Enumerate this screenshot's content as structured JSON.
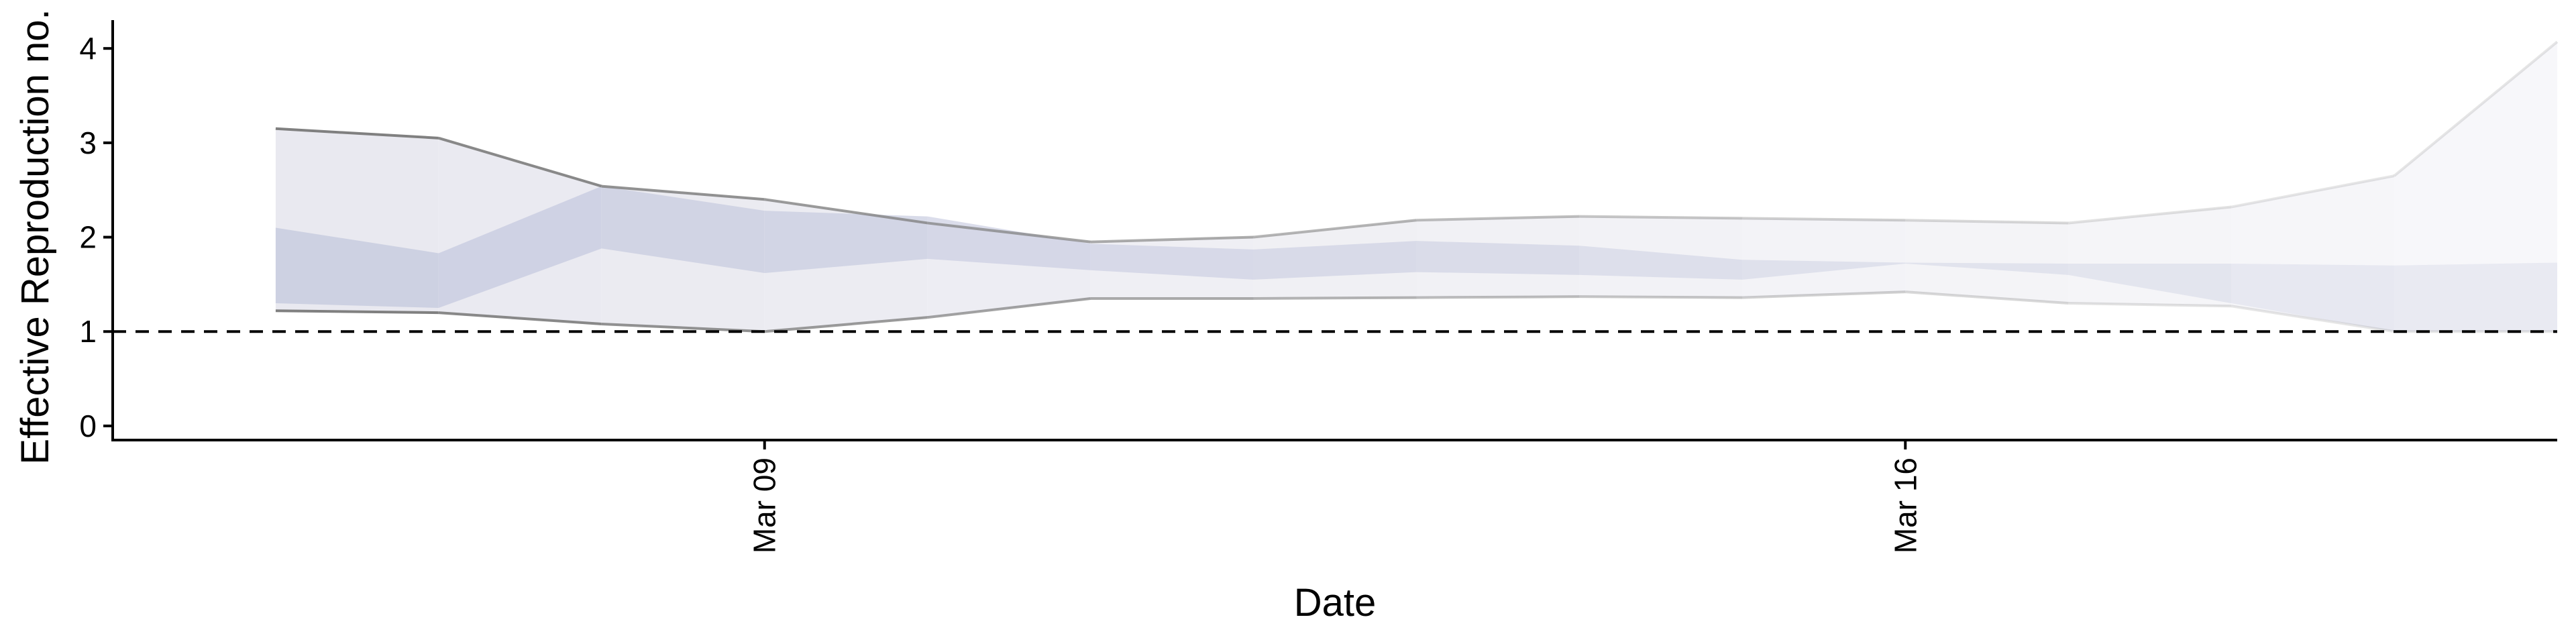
{
  "chart_data": {
    "type": "area",
    "xlabel": "Date",
    "ylabel": "Effective Reproduction no.",
    "ylim": [
      -0.15,
      4.3
    ],
    "xlim": [
      "2020-03-05",
      "2020-03-20"
    ],
    "x_ticks": [
      "2020-03-09",
      "2020-03-16"
    ],
    "x_tick_labels": [
      "Mar 09",
      "Mar 16"
    ],
    "y_ticks": [
      0,
      1,
      2,
      3,
      4
    ],
    "y_tick_labels": [
      "0",
      "1",
      "2",
      "3",
      "4"
    ],
    "reference_line": {
      "y": 1,
      "style": "dashed"
    },
    "x": [
      "2020-03-06",
      "2020-03-07",
      "2020-03-08",
      "2020-03-09",
      "2020-03-10",
      "2020-03-11",
      "2020-03-12",
      "2020-03-13",
      "2020-03-14",
      "2020-03-15",
      "2020-03-16",
      "2020-03-17",
      "2020-03-18",
      "2020-03-19",
      "2020-03-20"
    ],
    "outer_upper": [
      3.15,
      3.05,
      2.54,
      2.4,
      2.15,
      1.95,
      2.0,
      2.18,
      2.22,
      2.2,
      2.18,
      2.15,
      2.32,
      2.65,
      4.07
    ],
    "outer_lower": [
      1.22,
      1.2,
      1.08,
      1.0,
      1.15,
      1.35,
      1.35,
      1.36,
      1.37,
      1.36,
      1.42,
      1.3,
      1.27,
      1.0,
      1.0
    ],
    "inner_upper": [
      2.1,
      1.83,
      2.54,
      2.28,
      2.22,
      1.93,
      1.87,
      1.96,
      1.91,
      1.76,
      1.73,
      1.72,
      1.72,
      1.7,
      1.73
    ],
    "inner_lower": [
      1.3,
      1.25,
      1.88,
      1.62,
      1.77,
      1.65,
      1.55,
      1.63,
      1.6,
      1.55,
      1.72,
      1.6,
      1.3,
      1.0,
      1.0
    ]
  },
  "colors": {
    "outer_band": "#e9e9f0",
    "inner_band": "#c6cadf",
    "band_edge": "#808080",
    "axis": "#000000"
  }
}
